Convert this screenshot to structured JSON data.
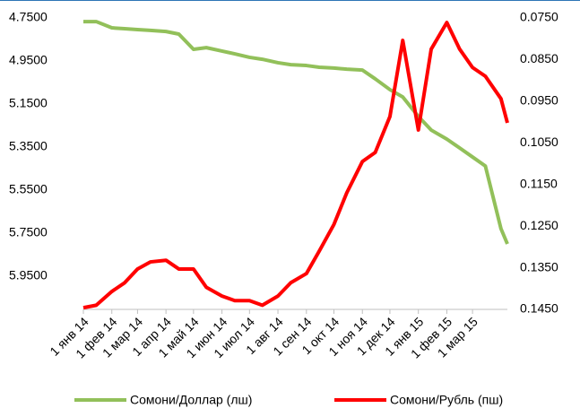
{
  "chart_data": {
    "type": "line",
    "x": [
      "2014-01-01",
      "2014-01-15",
      "2014-02-01",
      "2014-02-15",
      "2014-03-01",
      "2014-03-15",
      "2014-04-01",
      "2014-04-15",
      "2014-05-01",
      "2014-05-15",
      "2014-06-01",
      "2014-06-15",
      "2014-07-01",
      "2014-07-15",
      "2014-08-01",
      "2014-08-15",
      "2014-09-01",
      "2014-09-15",
      "2014-10-01",
      "2014-10-15",
      "2014-11-01",
      "2014-11-15",
      "2014-12-01",
      "2014-12-15",
      "2015-01-01",
      "2015-01-15",
      "2015-02-01",
      "2015-02-15",
      "2015-03-01",
      "2015-03-15",
      "2015-04-01",
      "2015-04-08"
    ],
    "xlim": [
      "2014-01-01",
      "2015-04-08"
    ],
    "xticks": [
      {
        "value": "2014-01-01",
        "label": "1 янв 14"
      },
      {
        "value": "2014-02-01",
        "label": "1 фев 14"
      },
      {
        "value": "2014-03-01",
        "label": "1 мар 14"
      },
      {
        "value": "2014-04-01",
        "label": "1 апр 14"
      },
      {
        "value": "2014-05-01",
        "label": "1 май 14"
      },
      {
        "value": "2014-06-01",
        "label": "1 июн 14"
      },
      {
        "value": "2014-07-01",
        "label": "1 июл 14"
      },
      {
        "value": "2014-08-01",
        "label": "1 авг 14"
      },
      {
        "value": "2014-09-01",
        "label": "1 сен 14"
      },
      {
        "value": "2014-10-01",
        "label": "1 окт 14"
      },
      {
        "value": "2014-11-01",
        "label": "1 ноя 14"
      },
      {
        "value": "2014-12-01",
        "label": "1 дек 14"
      },
      {
        "value": "2015-01-01",
        "label": "1 янв 15"
      },
      {
        "value": "2015-02-01",
        "label": "1 фев 15"
      },
      {
        "value": "2015-03-01",
        "label": "1 мар 15"
      }
    ],
    "ylim": [
      4.75,
      6.104
    ],
    "yticks": [
      {
        "value": 4.75,
        "label": "4.7500"
      },
      {
        "value": 4.95,
        "label": "4.9500"
      },
      {
        "value": 5.15,
        "label": "5.1500"
      },
      {
        "value": 5.35,
        "label": "5.3500"
      },
      {
        "value": 5.55,
        "label": "5.5500"
      },
      {
        "value": 5.75,
        "label": "5.7500"
      },
      {
        "value": 5.95,
        "label": "5.9500"
      }
    ],
    "y2lim": [
      0.075,
      0.145
    ],
    "y2ticks": [
      {
        "value": 0.075,
        "label": "0.0750"
      },
      {
        "value": 0.085,
        "label": "0.0850"
      },
      {
        "value": 0.095,
        "label": "0.0950"
      },
      {
        "value": 0.105,
        "label": "0.1050"
      },
      {
        "value": 0.115,
        "label": "0.1150"
      },
      {
        "value": 0.125,
        "label": "0.1250"
      },
      {
        "value": 0.135,
        "label": "0.1350"
      },
      {
        "value": 0.145,
        "label": "0.1450"
      }
    ],
    "y_reversed": true,
    "y2_reversed": true,
    "legend": "bottom",
    "series": [
      {
        "name": "Сомони/Доллар (лш)",
        "color": "#92c05a",
        "axis": "y",
        "values": [
          4.767,
          4.767,
          4.796,
          4.8,
          4.804,
          4.808,
          4.813,
          4.825,
          4.896,
          4.888,
          4.904,
          4.917,
          4.933,
          4.942,
          4.958,
          4.967,
          4.971,
          4.979,
          4.983,
          4.988,
          4.992,
          5.033,
          5.083,
          5.117,
          5.208,
          5.271,
          5.313,
          5.354,
          5.396,
          5.438,
          5.729,
          5.8
        ]
      },
      {
        "name": "Сомони/Рубль (пш)",
        "color": "#ff0000",
        "axis": "y2",
        "values": [
          0.1446,
          0.144,
          0.1407,
          0.1386,
          0.1353,
          0.1336,
          0.1332,
          0.1353,
          0.1353,
          0.1397,
          0.1418,
          0.1429,
          0.1429,
          0.144,
          0.1418,
          0.1386,
          0.1364,
          0.131,
          0.1246,
          0.117,
          0.1095,
          0.1073,
          0.0987,
          0.0804,
          0.1019,
          0.0825,
          0.0761,
          0.0825,
          0.0869,
          0.089,
          0.0944,
          0.1002
        ]
      }
    ]
  }
}
